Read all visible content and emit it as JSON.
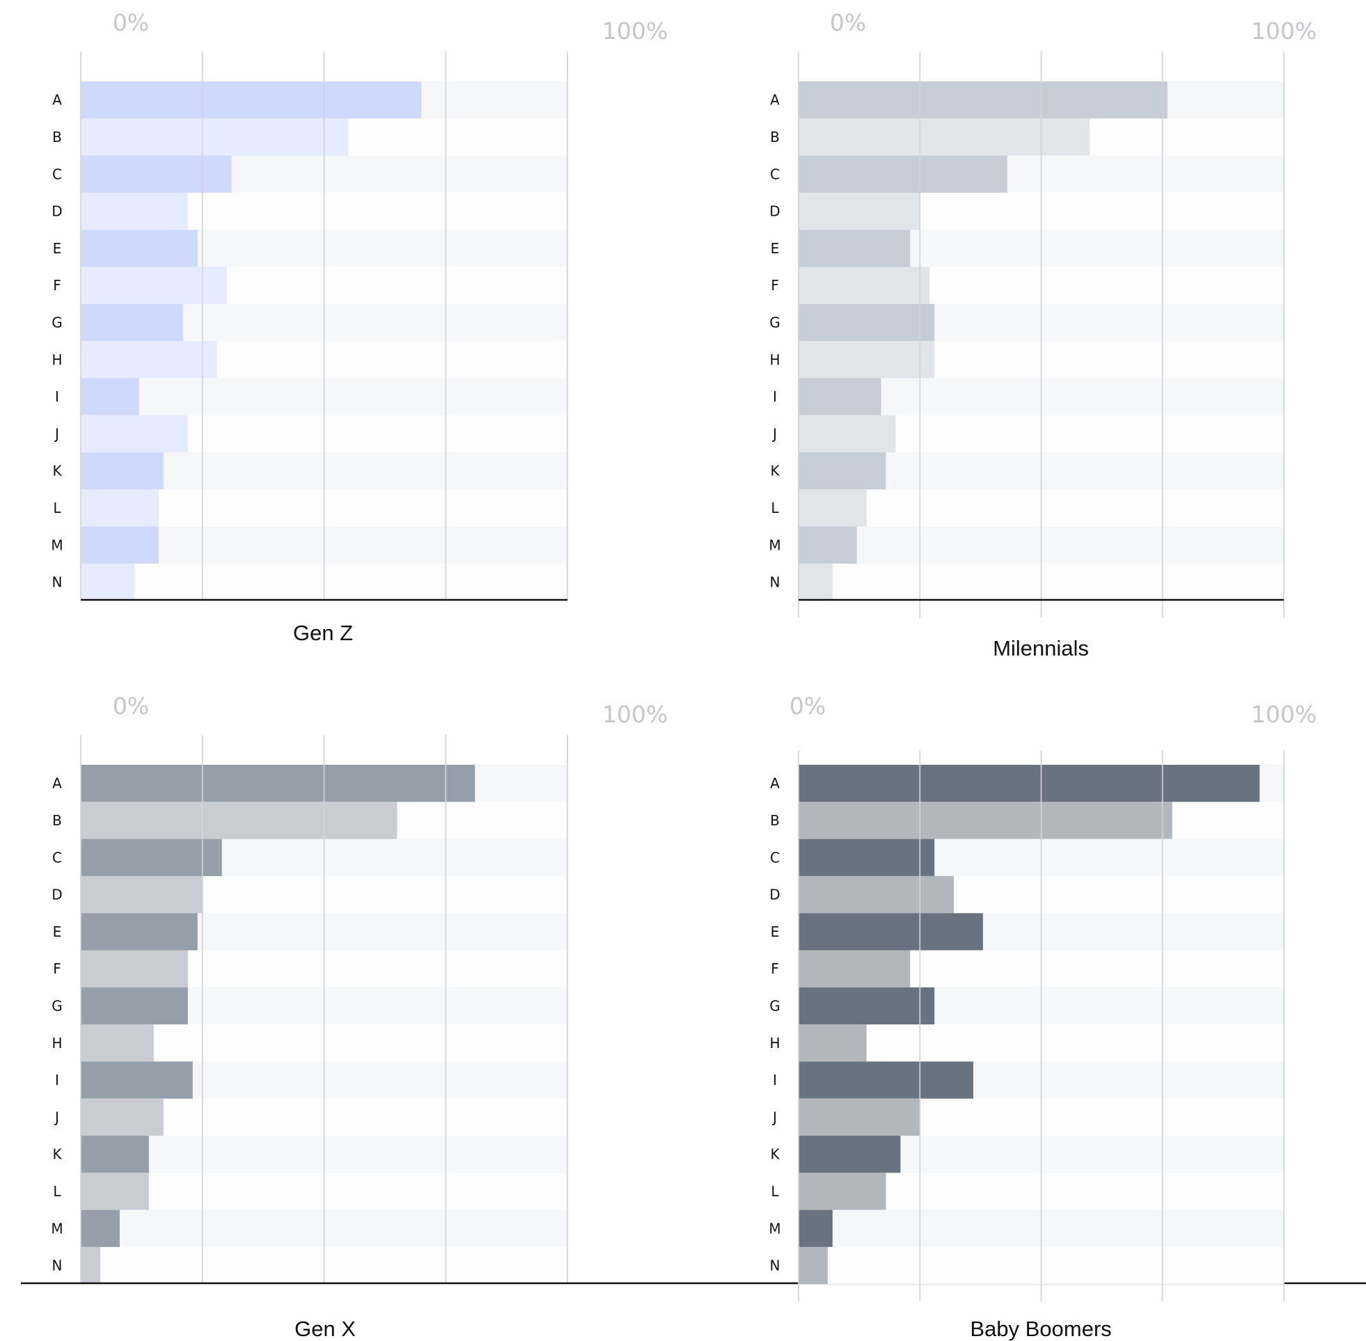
{
  "chart_data": [
    {
      "type": "bar",
      "orientation": "horizontal",
      "title": "Gen Z",
      "categories": [
        "A",
        "B",
        "C",
        "D",
        "E",
        "F",
        "G",
        "H",
        "I",
        "J",
        "K",
        "L",
        "M",
        "N"
      ],
      "values": [
        70,
        55,
        31,
        22,
        24,
        30,
        21,
        28,
        12,
        22,
        17,
        16,
        16,
        11
      ],
      "xlim": [
        0,
        100
      ],
      "tick_labels": [
        "0%",
        "100%"
      ],
      "colors": {
        "odd": "#cfd9fc",
        "even": "#e6ebfd"
      },
      "grid": true
    },
    {
      "type": "bar",
      "orientation": "horizontal",
      "title": "Milennials",
      "categories": [
        "A",
        "B",
        "C",
        "D",
        "E",
        "F",
        "G",
        "H",
        "I",
        "J",
        "K",
        "L",
        "M",
        "N"
      ],
      "values": [
        76,
        60,
        43,
        25,
        23,
        27,
        28,
        28,
        17,
        20,
        18,
        14,
        12,
        7
      ],
      "xlim": [
        0,
        100
      ],
      "tick_labels": [
        "0%",
        "100%"
      ],
      "colors": {
        "odd": "#c6cdd6",
        "even": "#e1e5e9"
      },
      "grid": true
    },
    {
      "type": "bar",
      "orientation": "horizontal",
      "title": "Gen X",
      "categories": [
        "A",
        "B",
        "C",
        "D",
        "E",
        "F",
        "G",
        "H",
        "I",
        "J",
        "K",
        "L",
        "M",
        "N"
      ],
      "values": [
        81,
        65,
        29,
        25,
        24,
        22,
        22,
        15,
        23,
        17,
        14,
        14,
        8,
        4
      ],
      "xlim": [
        0,
        100
      ],
      "tick_labels": [
        "0%",
        "100%"
      ],
      "colors": {
        "odd": "#969ea9",
        "even": "#c9cdd3"
      },
      "grid": true
    },
    {
      "type": "bar",
      "orientation": "horizontal",
      "title": "Baby Boomers",
      "categories": [
        "A",
        "B",
        "C",
        "D",
        "E",
        "F",
        "G",
        "H",
        "I",
        "J",
        "K",
        "L",
        "M",
        "N"
      ],
      "values": [
        95,
        77,
        28,
        32,
        38,
        23,
        28,
        14,
        36,
        25,
        21,
        18,
        7,
        6
      ],
      "xlim": [
        0,
        100
      ],
      "tick_labels": [
        "0%",
        "100%"
      ],
      "colors": {
        "odd": "#68737f",
        "even": "#b2b7be"
      },
      "grid": true
    }
  ]
}
